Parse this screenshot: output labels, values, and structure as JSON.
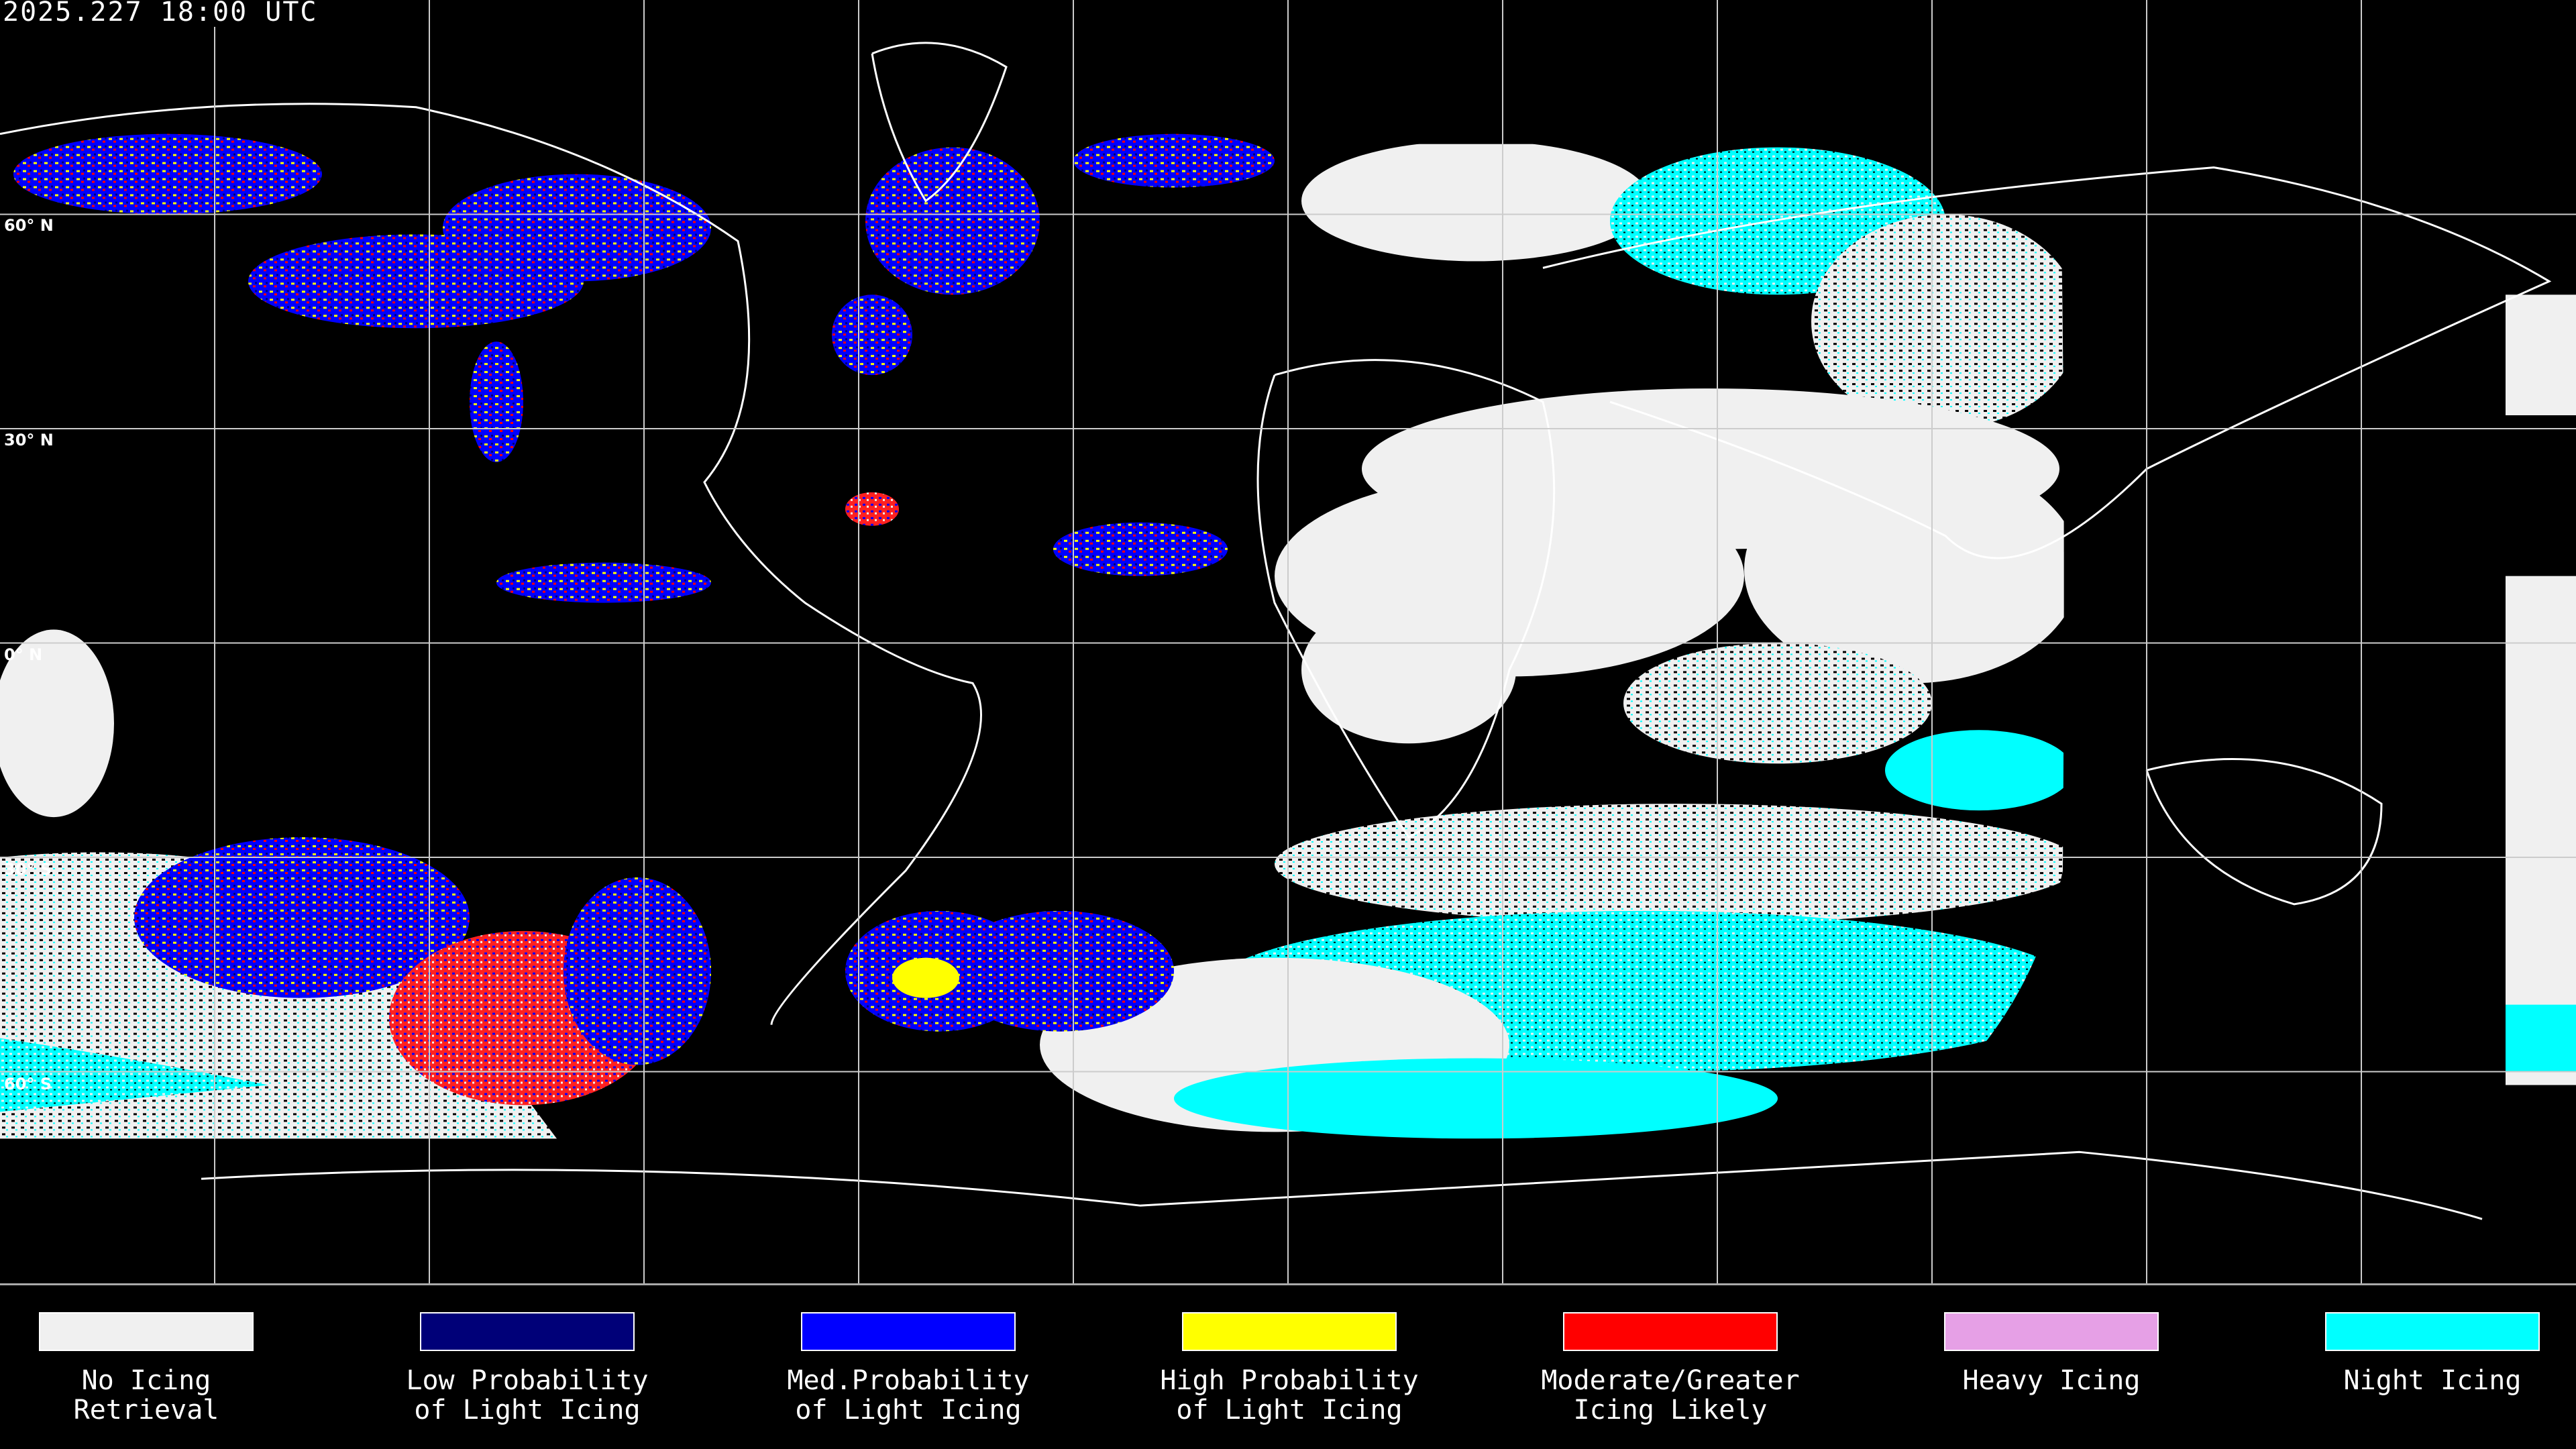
{
  "header": {
    "timestamp": "2025.227 18:00 UTC"
  },
  "map": {
    "latitude_labels": [
      "60° N",
      "30° N",
      "0° N",
      "30° S",
      "60° S"
    ],
    "grid": true
  },
  "legend": {
    "items": [
      {
        "label": "No Icing\nRetrieval",
        "color": "#f0f0f0"
      },
      {
        "label": "Low Probability\nof Light Icing",
        "color": "#000078"
      },
      {
        "label": "Med.Probability\nof Light Icing",
        "color": "#0000ff"
      },
      {
        "label": "High Probability\nof Light Icing",
        "color": "#ffff00"
      },
      {
        "label": "Moderate/Greater\nIcing Likely",
        "color": "#ff0000"
      },
      {
        "label": "Heavy Icing",
        "color": "#e6a0e6"
      },
      {
        "label": "Night Icing",
        "color": "#00ffff"
      }
    ]
  }
}
